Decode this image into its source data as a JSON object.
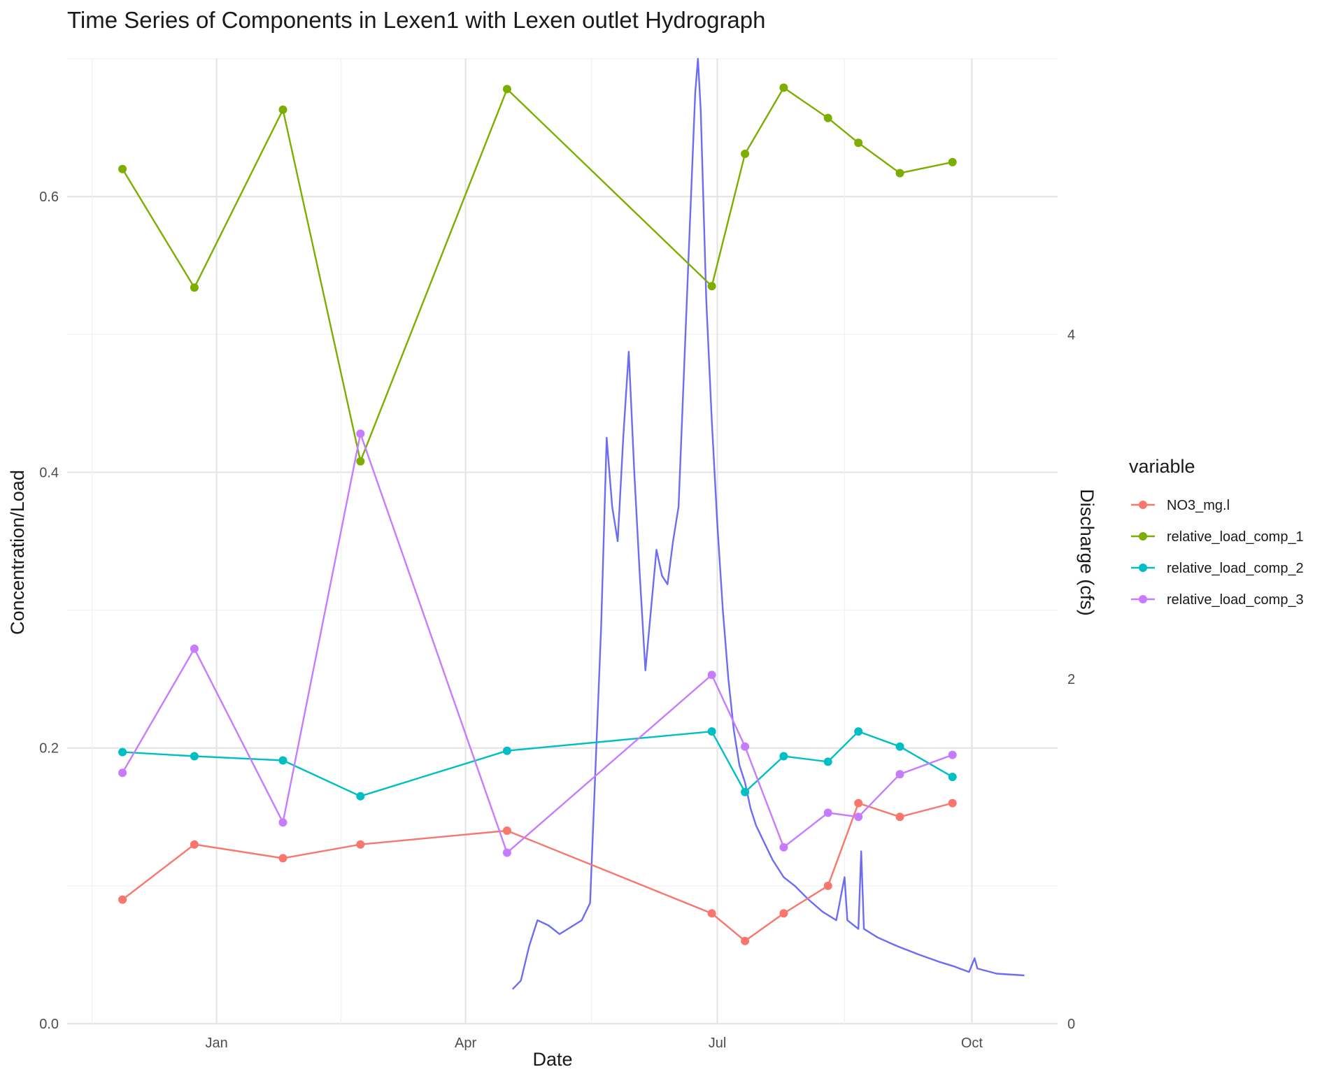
{
  "chart_data": {
    "type": "line",
    "title": "Time Series of Components in Lexen1 with Lexen outlet Hydrograph",
    "xlabel": "Date",
    "ylabel": "Concentration/Load",
    "y2label": "Discharge (cfs)",
    "xlim": [
      "2018-11-08",
      "2019-11-01"
    ],
    "ylim": [
      0,
      0.7
    ],
    "y2lim": [
      0,
      5.6
    ],
    "x_ticks": [
      {
        "date": "2019-01-01",
        "label": "Jan"
      },
      {
        "date": "2019-04-01",
        "label": "Apr"
      },
      {
        "date": "2019-07-01",
        "label": "Jul"
      },
      {
        "date": "2019-10-01",
        "label": "Oct"
      }
    ],
    "y_ticks": [
      "0.0",
      "0.2",
      "0.4",
      "0.6"
    ],
    "y2_ticks": [
      "0",
      "2",
      "4"
    ],
    "grid": true,
    "legend": {
      "title": "variable",
      "position": "right"
    },
    "x": [
      "2018-11-28",
      "2018-12-24",
      "2019-01-25",
      "2019-02-22",
      "2019-04-16",
      "2019-06-29",
      "2019-07-11",
      "2019-07-25",
      "2019-08-10",
      "2019-08-21",
      "2019-09-05",
      "2019-09-24"
    ],
    "series": [
      {
        "name": "NO3_mg.l",
        "color": "#F8766D",
        "values": [
          0.09,
          0.13,
          0.12,
          0.13,
          0.14,
          0.08,
          0.06,
          0.08,
          0.1,
          0.16,
          0.15,
          0.16
        ]
      },
      {
        "name": "relative_load_comp_1",
        "color": "#7CAE00",
        "values": [
          0.62,
          0.534,
          0.663,
          0.408,
          0.678,
          0.535,
          0.631,
          0.679,
          0.657,
          0.639,
          0.617,
          0.625
        ]
      },
      {
        "name": "relative_load_comp_2",
        "color": "#00BFC4",
        "values": [
          0.197,
          0.194,
          0.191,
          0.165,
          0.198,
          0.212,
          0.168,
          0.194,
          0.19,
          0.212,
          0.201,
          0.179
        ]
      },
      {
        "name": "relative_load_comp_3",
        "color": "#C77CFF",
        "values": [
          0.182,
          0.272,
          0.146,
          0.428,
          0.124,
          0.253,
          0.201,
          0.128,
          0.153,
          0.15,
          0.181,
          0.195
        ]
      }
    ],
    "hydrograph": {
      "name": "Lexen outlet Hydrograph",
      "axis": "secondary",
      "color": "#3b3bf0",
      "points": [
        [
          "2019-04-18",
          0.2
        ],
        [
          "2019-04-21",
          0.25
        ],
        [
          "2019-04-24",
          0.45
        ],
        [
          "2019-04-27",
          0.6
        ],
        [
          "2019-05-01",
          0.57
        ],
        [
          "2019-05-05",
          0.52
        ],
        [
          "2019-05-09",
          0.56
        ],
        [
          "2019-05-13",
          0.6
        ],
        [
          "2019-05-16",
          0.7
        ],
        [
          "2019-05-18",
          1.5
        ],
        [
          "2019-05-20",
          2.3
        ],
        [
          "2019-05-22",
          3.4
        ],
        [
          "2019-05-24",
          3.0
        ],
        [
          "2019-05-26",
          2.8
        ],
        [
          "2019-05-28",
          3.4
        ],
        [
          "2019-05-30",
          3.9
        ],
        [
          "2019-06-01",
          3.2
        ],
        [
          "2019-06-03",
          2.6
        ],
        [
          "2019-06-05",
          2.05
        ],
        [
          "2019-06-07",
          2.4
        ],
        [
          "2019-06-09",
          2.75
        ],
        [
          "2019-06-11",
          2.6
        ],
        [
          "2019-06-13",
          2.55
        ],
        [
          "2019-06-15",
          2.8
        ],
        [
          "2019-06-17",
          3.0
        ],
        [
          "2019-06-19",
          3.8
        ],
        [
          "2019-06-21",
          4.6
        ],
        [
          "2019-06-23",
          5.4
        ],
        [
          "2019-06-24",
          5.6
        ],
        [
          "2019-06-25",
          5.3
        ],
        [
          "2019-06-27",
          4.2
        ],
        [
          "2019-06-29",
          3.5
        ],
        [
          "2019-07-01",
          2.9
        ],
        [
          "2019-07-03",
          2.4
        ],
        [
          "2019-07-05",
          2.0
        ],
        [
          "2019-07-07",
          1.7
        ],
        [
          "2019-07-09",
          1.5
        ],
        [
          "2019-07-11",
          1.4
        ],
        [
          "2019-07-13",
          1.25
        ],
        [
          "2019-07-15",
          1.15
        ],
        [
          "2019-07-18",
          1.05
        ],
        [
          "2019-07-21",
          0.95
        ],
        [
          "2019-07-25",
          0.85
        ],
        [
          "2019-07-29",
          0.8
        ],
        [
          "2019-08-03",
          0.72
        ],
        [
          "2019-08-08",
          0.65
        ],
        [
          "2019-08-13",
          0.6
        ],
        [
          "2019-08-16",
          0.85
        ],
        [
          "2019-08-17",
          0.6
        ],
        [
          "2019-08-21",
          0.55
        ],
        [
          "2019-08-22",
          1.0
        ],
        [
          "2019-08-23",
          0.55
        ],
        [
          "2019-08-28",
          0.5
        ],
        [
          "2019-09-04",
          0.45
        ],
        [
          "2019-09-12",
          0.4
        ],
        [
          "2019-09-19",
          0.36
        ],
        [
          "2019-09-25",
          0.33
        ],
        [
          "2019-09-30",
          0.3
        ],
        [
          "2019-10-02",
          0.38
        ],
        [
          "2019-10-03",
          0.32
        ],
        [
          "2019-10-10",
          0.29
        ],
        [
          "2019-10-20",
          0.28
        ]
      ]
    }
  }
}
